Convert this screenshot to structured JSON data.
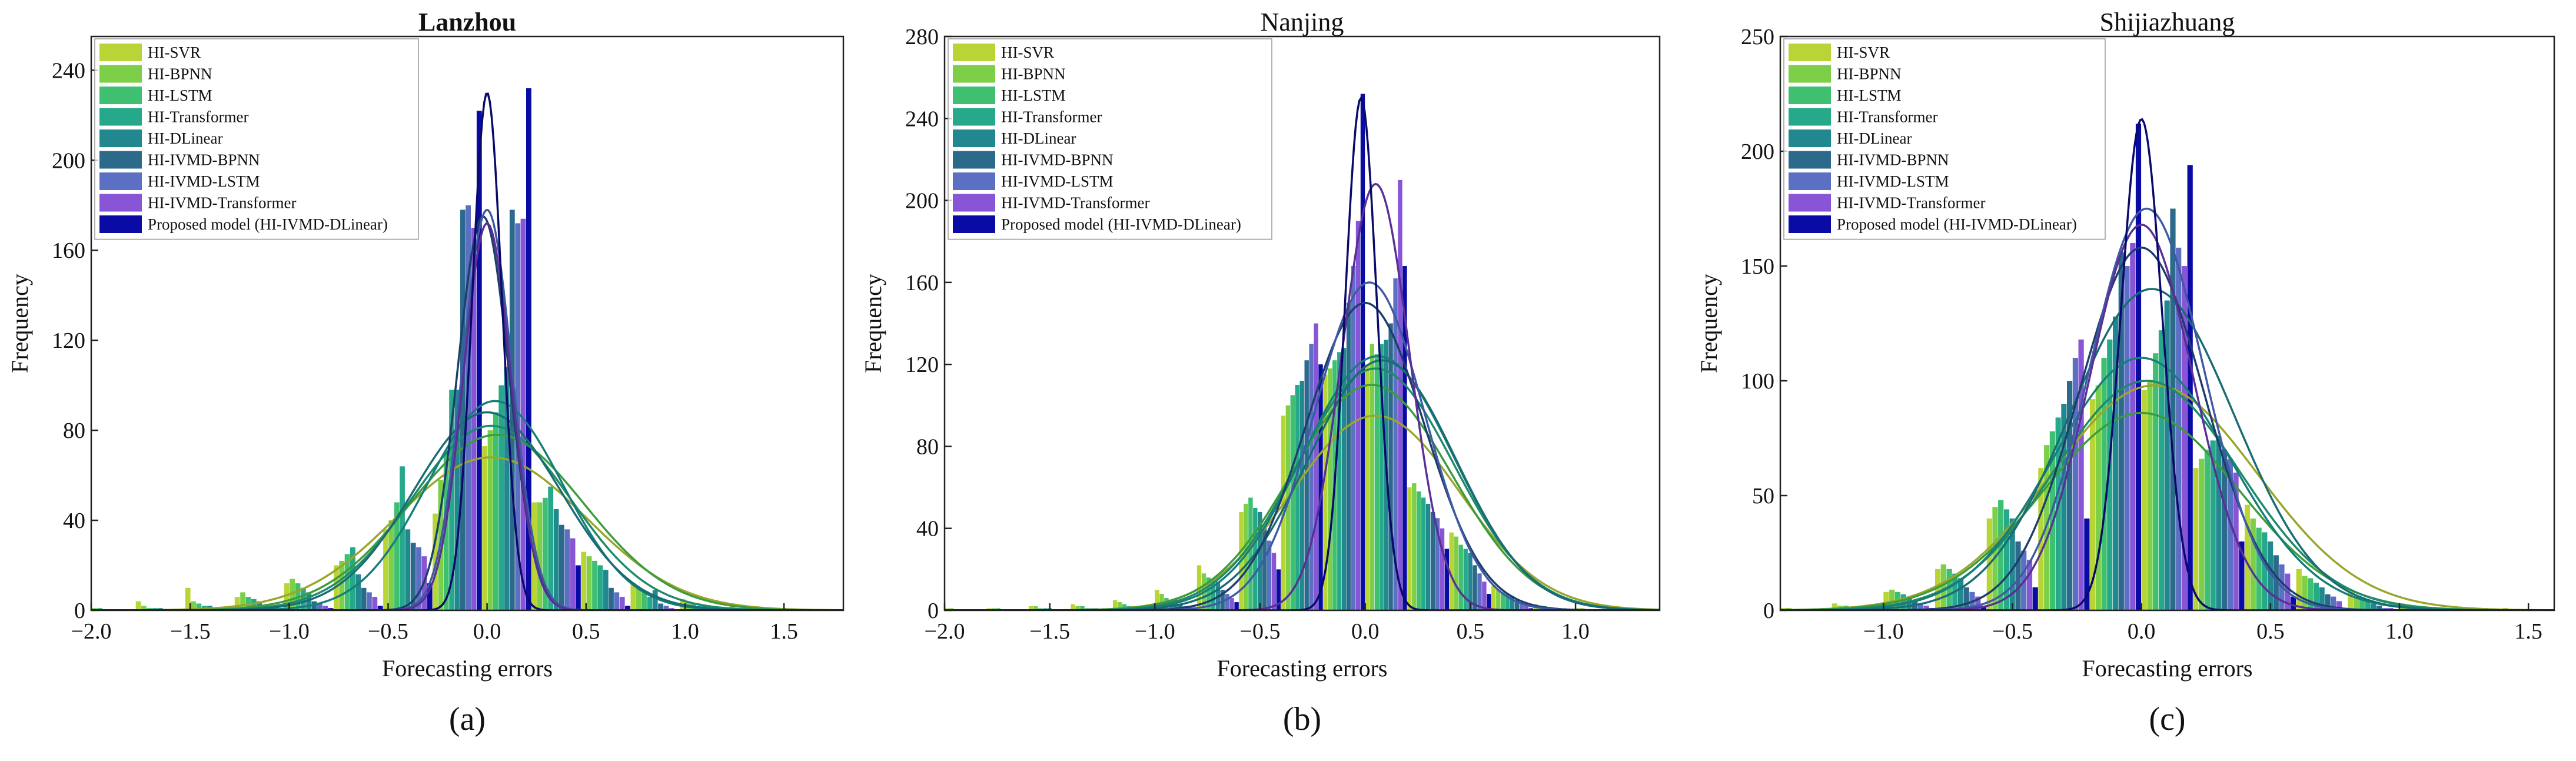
{
  "figure": {
    "colors": [
      "#b8d437",
      "#7ccf47",
      "#3fbf70",
      "#26a98a",
      "#22888f",
      "#2c6a8b",
      "#5b6fc3",
      "#8855d6",
      "#0a0aa4"
    ],
    "curve_colors": [
      "#9aa62b",
      "#3c9c3d",
      "#1e8a6a",
      "#167e7a",
      "#1a6c74",
      "#1d3e6c",
      "#3f5aa4",
      "#5a2f96",
      "#0a0a6a"
    ]
  },
  "chart_data": [
    {
      "type": "bar",
      "panel_label": "(a)",
      "title": "Lanzhou",
      "title_bold": true,
      "xlabel": "Forecasting errors",
      "ylabel": "Frequency",
      "xlim": [
        -2.0,
        1.8
      ],
      "ylim": [
        0,
        255
      ],
      "xticks": [
        -2.0,
        -1.5,
        -1.0,
        -0.5,
        0.0,
        0.5,
        1.0,
        1.5
      ],
      "xtick_labels": [
        "−2.0",
        "−1.5",
        "−1.0",
        "−0.5",
        "0.0",
        "0.5",
        "1.0",
        "1.5"
      ],
      "yticks": [
        0,
        40,
        80,
        120,
        160,
        200,
        240
      ],
      "ytick_labels": [
        "0",
        "40",
        "80",
        "120",
        "160",
        "200",
        "240"
      ],
      "bins": [
        -1.9,
        -1.65,
        -1.4,
        -1.15,
        -0.9,
        -0.65,
        -0.4,
        -0.15,
        0.1,
        0.35,
        0.6,
        0.85,
        1.1,
        1.35,
        1.6
      ],
      "bin_width": 0.25,
      "series": [
        {
          "name": "HI-SVR",
          "values": [
            2,
            4,
            10,
            6,
            12,
            20,
            36,
            43,
            73,
            48,
            26,
            12,
            5,
            2,
            1
          ],
          "curve": {
            "mean": 0.02,
            "std": 0.48,
            "peak": 68
          }
        },
        {
          "name": "HI-BPNN",
          "values": [
            1,
            2,
            4,
            8,
            14,
            22,
            40,
            58,
            80,
            48,
            24,
            10,
            4,
            1,
            0
          ],
          "curve": {
            "mean": 0.05,
            "std": 0.44,
            "peak": 78
          }
        },
        {
          "name": "HI-LSTM",
          "values": [
            1,
            1,
            3,
            6,
            12,
            25,
            48,
            70,
            88,
            50,
            22,
            8,
            3,
            1,
            0
          ],
          "curve": {
            "mean": 0.02,
            "std": 0.4,
            "peak": 82
          }
        },
        {
          "name": "HI-Transformer",
          "values": [
            0,
            1,
            2,
            5,
            10,
            28,
            64,
            98,
            100,
            55,
            20,
            6,
            2,
            0,
            0
          ],
          "curve": {
            "mean": 0.04,
            "std": 0.34,
            "peak": 93
          }
        },
        {
          "name": "HI-DLinear",
          "values": [
            0,
            1,
            2,
            4,
            8,
            16,
            36,
            98,
            108,
            45,
            18,
            9,
            2,
            0,
            0
          ],
          "curve": {
            "mean": 0.0,
            "std": 0.37,
            "peak": 88
          }
        },
        {
          "name": "HI-IVMD-BPNN",
          "values": [
            0,
            0,
            1,
            2,
            4,
            10,
            30,
            178,
            178,
            38,
            10,
            3,
            1,
            0,
            0
          ],
          "curve": {
            "mean": -0.02,
            "std": 0.13,
            "peak": 175
          }
        },
        {
          "name": "HI-IVMD-LSTM",
          "values": [
            0,
            0,
            1,
            2,
            3,
            8,
            28,
            180,
            172,
            36,
            8,
            2,
            0,
            0,
            0
          ],
          "curve": {
            "mean": 0.0,
            "std": 0.125,
            "peak": 178
          }
        },
        {
          "name": "HI-IVMD-Transformer",
          "values": [
            0,
            0,
            0,
            1,
            2,
            6,
            24,
            170,
            174,
            32,
            6,
            1,
            0,
            0,
            0
          ],
          "curve": {
            "mean": 0.0,
            "std": 0.12,
            "peak": 172
          }
        },
        {
          "name": "Proposed model (HI-IVMD-DLinear)",
          "values": [
            0,
            0,
            0,
            0,
            1,
            2,
            12,
            222,
            232,
            20,
            2,
            0,
            0,
            0,
            0
          ],
          "curve": {
            "mean": 0.0,
            "std": 0.075,
            "peak": 230
          }
        }
      ]
    },
    {
      "type": "bar",
      "panel_label": "(b)",
      "title": "Nanjing",
      "title_bold": false,
      "xlabel": "Forecasting errors",
      "ylabel": "Frequency",
      "xlim": [
        -2.0,
        1.4
      ],
      "ylim": [
        0,
        280
      ],
      "xticks": [
        -2.0,
        -1.5,
        -1.0,
        -0.5,
        0.0,
        0.5,
        1.0
      ],
      "xtick_labels": [
        "−2.0",
        "−1.5",
        "−1.0",
        "−0.5",
        "0.0",
        "0.5",
        "1.0"
      ],
      "yticks": [
        0,
        40,
        80,
        120,
        160,
        200,
        240,
        280
      ],
      "ytick_labels": [
        "0",
        "40",
        "80",
        "120",
        "160",
        "200",
        "240",
        "280"
      ],
      "bins": [
        -1.9,
        -1.7,
        -1.5,
        -1.3,
        -1.1,
        -0.9,
        -0.7,
        -0.5,
        -0.3,
        -0.1,
        0.1,
        0.3,
        0.5,
        0.7,
        0.9,
        1.1
      ],
      "bin_width": 0.2,
      "series": [
        {
          "name": "HI-SVR",
          "values": [
            1,
            1,
            2,
            3,
            5,
            10,
            22,
            48,
            95,
            115,
            120,
            60,
            38,
            12,
            3,
            1
          ],
          "curve": {
            "mean": 0.05,
            "std": 0.4,
            "peak": 95
          }
        },
        {
          "name": "HI-BPNN",
          "values": [
            1,
            1,
            2,
            2,
            4,
            8,
            18,
            52,
            100,
            118,
            130,
            62,
            36,
            10,
            2,
            1
          ],
          "curve": {
            "mean": 0.03,
            "std": 0.38,
            "peak": 110
          }
        },
        {
          "name": "HI-LSTM",
          "values": [
            0,
            1,
            1,
            2,
            3,
            6,
            16,
            55,
            105,
            122,
            125,
            58,
            32,
            9,
            2,
            0
          ],
          "curve": {
            "mean": 0.05,
            "std": 0.37,
            "peak": 118
          }
        },
        {
          "name": "HI-Transformer",
          "values": [
            0,
            0,
            1,
            1,
            2,
            5,
            15,
            50,
            110,
            126,
            130,
            55,
            30,
            8,
            1,
            0
          ],
          "curve": {
            "mean": 0.06,
            "std": 0.36,
            "peak": 124
          }
        },
        {
          "name": "HI-DLinear",
          "values": [
            0,
            0,
            1,
            1,
            2,
            5,
            14,
            48,
            112,
            128,
            132,
            52,
            28,
            7,
            1,
            0
          ],
          "curve": {
            "mean": 0.08,
            "std": 0.35,
            "peak": 122
          }
        },
        {
          "name": "HI-IVMD-BPNN",
          "values": [
            0,
            0,
            0,
            1,
            1,
            3,
            10,
            40,
            122,
            150,
            140,
            48,
            22,
            5,
            1,
            0
          ],
          "curve": {
            "mean": 0.0,
            "std": 0.28,
            "peak": 150
          }
        },
        {
          "name": "HI-IVMD-LSTM",
          "values": [
            0,
            0,
            0,
            0,
            1,
            2,
            8,
            34,
            130,
            168,
            162,
            45,
            18,
            4,
            0,
            0
          ],
          "curve": {
            "mean": 0.02,
            "std": 0.26,
            "peak": 160
          }
        },
        {
          "name": "HI-IVMD-Transformer",
          "values": [
            0,
            0,
            0,
            0,
            1,
            2,
            6,
            28,
            140,
            190,
            210,
            40,
            14,
            3,
            0,
            0
          ],
          "curve": {
            "mean": 0.05,
            "std": 0.16,
            "peak": 208
          }
        },
        {
          "name": "Proposed model (HI-IVMD-DLinear)",
          "values": [
            0,
            0,
            0,
            0,
            0,
            1,
            4,
            20,
            120,
            252,
            168,
            30,
            8,
            1,
            0,
            0
          ],
          "curve": {
            "mean": -0.02,
            "std": 0.075,
            "peak": 250
          }
        }
      ]
    },
    {
      "type": "bar",
      "panel_label": "(c)",
      "title": "Shijiazhuang",
      "title_bold": false,
      "xlabel": "Forecasting errors",
      "ylabel": "Frequency",
      "xlim": [
        -1.4,
        1.6
      ],
      "ylim": [
        0,
        250
      ],
      "xticks": [
        -1.0,
        -0.5,
        0.0,
        0.5,
        1.0,
        1.5
      ],
      "xtick_labels": [
        "−1.0",
        "−0.5",
        "0.0",
        "0.5",
        "1.0",
        "1.5"
      ],
      "yticks": [
        0,
        50,
        100,
        150,
        200,
        250
      ],
      "ytick_labels": [
        "0",
        "50",
        "100",
        "150",
        "200",
        "250"
      ],
      "bins": [
        -1.3,
        -1.1,
        -0.9,
        -0.7,
        -0.5,
        -0.3,
        -0.1,
        0.1,
        0.3,
        0.5,
        0.7,
        0.9,
        1.1,
        1.3,
        1.5
      ],
      "bin_width": 0.2,
      "series": [
        {
          "name": "HI-SVR",
          "values": [
            1,
            3,
            8,
            18,
            40,
            62,
            92,
            96,
            62,
            46,
            18,
            8,
            3,
            1,
            1
          ],
          "curve": {
            "mean": 0.05,
            "std": 0.4,
            "peak": 98
          }
        },
        {
          "name": "HI-BPNN",
          "values": [
            1,
            2,
            9,
            20,
            45,
            72,
            98,
            100,
            66,
            40,
            15,
            6,
            2,
            1,
            0
          ],
          "curve": {
            "mean": 0.0,
            "std": 0.38,
            "peak": 86
          }
        },
        {
          "name": "HI-LSTM",
          "values": [
            0,
            2,
            8,
            18,
            48,
            78,
            110,
            112,
            70,
            36,
            14,
            5,
            2,
            0,
            0
          ],
          "curve": {
            "mean": 0.02,
            "std": 0.36,
            "peak": 100
          }
        },
        {
          "name": "HI-Transformer",
          "values": [
            0,
            1,
            7,
            16,
            44,
            84,
            118,
            122,
            74,
            34,
            12,
            4,
            1,
            0,
            0
          ],
          "curve": {
            "mean": 0.0,
            "std": 0.34,
            "peak": 110
          }
        },
        {
          "name": "HI-DLinear",
          "values": [
            0,
            1,
            6,
            14,
            40,
            90,
            128,
            135,
            76,
            30,
            10,
            3,
            1,
            0,
            0
          ],
          "curve": {
            "mean": 0.04,
            "std": 0.32,
            "peak": 140
          }
        },
        {
          "name": "HI-IVMD-BPNN",
          "values": [
            0,
            1,
            4,
            10,
            30,
            100,
            156,
            175,
            70,
            24,
            7,
            2,
            0,
            0,
            0
          ],
          "curve": {
            "mean": 0.0,
            "std": 0.24,
            "peak": 158
          }
        },
        {
          "name": "HI-IVMD-LSTM",
          "values": [
            0,
            0,
            3,
            8,
            26,
            110,
            150,
            158,
            66,
            20,
            6,
            1,
            0,
            0,
            0
          ],
          "curve": {
            "mean": 0.02,
            "std": 0.22,
            "peak": 175
          }
        },
        {
          "name": "HI-IVMD-Transformer",
          "values": [
            0,
            0,
            2,
            6,
            22,
            118,
            160,
            150,
            60,
            16,
            4,
            1,
            0,
            0,
            0
          ],
          "curve": {
            "mean": 0.0,
            "std": 0.2,
            "peak": 168
          }
        },
        {
          "name": "Proposed model (HI-IVMD-DLinear)",
          "values": [
            0,
            0,
            1,
            2,
            10,
            40,
            212,
            194,
            30,
            6,
            1,
            0,
            0,
            0,
            0
          ],
          "curve": {
            "mean": 0.0,
            "std": 0.08,
            "peak": 214
          }
        }
      ]
    }
  ]
}
